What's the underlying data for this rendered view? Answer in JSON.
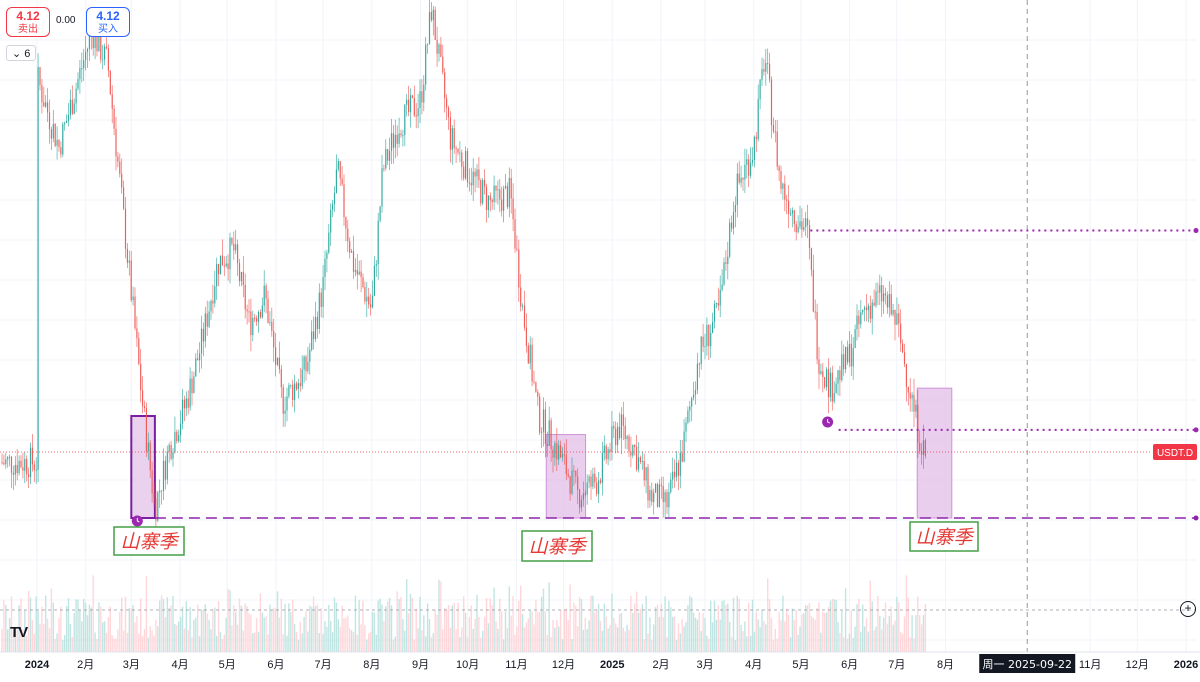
{
  "trade": {
    "sell_price": "4.12",
    "sell_label": "卖出",
    "spread": "0.00",
    "buy_price": "4.12",
    "buy_label": "买入"
  },
  "indicators_collapse": "6",
  "symbol_tag": "USDT.D",
  "crosshair_label": "周一 2025-09-22",
  "annotations": [
    "山寨季",
    "山寨季",
    "山寨季"
  ],
  "colors": {
    "up": "#26a69a",
    "down": "#ef5350",
    "zone_fill": "#e1bee7",
    "zone_border": "#7b1fa2",
    "label_text": "#e53935",
    "label_border": "#43a047",
    "price_tag": "#f23645"
  },
  "icons": [
    "chevron-down-icon",
    "tradingview-logo-icon",
    "alarm-icon",
    "plus-circle-icon"
  ],
  "chart_data": {
    "type": "candlestick",
    "xlabels": [
      "2024",
      "2月",
      "3月",
      "4月",
      "5月",
      "6月",
      "7月",
      "8月",
      "9月",
      "10月",
      "11月",
      "12月",
      "2025",
      "2月",
      "3月",
      "4月",
      "5月",
      "6月",
      "7月",
      "8月",
      "11月",
      "12月",
      "2026"
    ],
    "ylabels": [],
    "title": "",
    "support_line_value": 4.0,
    "current_value": 4.12,
    "dotted_levels": [
      4.62,
      4.19
    ],
    "crosshair_x": "2025-09-22",
    "grid": true,
    "series": [
      {
        "name": "price_path",
        "type": "candlestick",
        "values": [
          [
            "2024-01-01",
            4.95
          ],
          [
            "2024-01-15",
            4.8
          ],
          [
            "2024-01-25",
            4.92
          ],
          [
            "2024-02-05",
            5.05
          ],
          [
            "2024-02-15",
            4.98
          ],
          [
            "2024-02-28",
            4.55
          ],
          [
            "2024-03-08",
            4.25
          ],
          [
            "2024-03-16",
            4.02
          ],
          [
            "2024-03-25",
            4.15
          ],
          [
            "2024-04-05",
            4.25
          ],
          [
            "2024-04-15",
            4.38
          ],
          [
            "2024-04-25",
            4.55
          ],
          [
            "2024-05-05",
            4.58
          ],
          [
            "2024-05-15",
            4.42
          ],
          [
            "2024-05-25",
            4.48
          ],
          [
            "2024-06-05",
            4.25
          ],
          [
            "2024-06-20",
            4.32
          ],
          [
            "2024-07-01",
            4.5
          ],
          [
            "2024-07-10",
            4.75
          ],
          [
            "2024-07-20",
            4.55
          ],
          [
            "2024-08-01",
            4.45
          ],
          [
            "2024-08-08",
            4.75
          ],
          [
            "2024-08-18",
            4.85
          ],
          [
            "2024-09-01",
            4.9
          ],
          [
            "2024-09-08",
            5.1
          ],
          [
            "2024-09-20",
            4.82
          ],
          [
            "2024-10-01",
            4.75
          ],
          [
            "2024-10-15",
            4.68
          ],
          [
            "2024-10-28",
            4.7
          ],
          [
            "2024-11-05",
            4.45
          ],
          [
            "2024-11-15",
            4.22
          ],
          [
            "2024-11-28",
            4.14
          ],
          [
            "2024-12-10",
            4.05
          ],
          [
            "2024-12-22",
            4.08
          ],
          [
            "2025-01-05",
            4.2
          ],
          [
            "2025-01-15",
            4.15
          ],
          [
            "2025-01-25",
            4.05
          ],
          [
            "2025-02-05",
            4.03
          ],
          [
            "2025-02-15",
            4.15
          ],
          [
            "2025-02-25",
            4.35
          ],
          [
            "2025-03-10",
            4.45
          ],
          [
            "2025-03-20",
            4.7
          ],
          [
            "2025-04-01",
            4.8
          ],
          [
            "2025-04-08",
            5.0
          ],
          [
            "2025-04-18",
            4.72
          ],
          [
            "2025-04-28",
            4.65
          ],
          [
            "2025-05-05",
            4.62
          ],
          [
            "2025-05-12",
            4.35
          ],
          [
            "2025-05-20",
            4.28
          ],
          [
            "2025-06-01",
            4.35
          ],
          [
            "2025-06-10",
            4.45
          ],
          [
            "2025-06-22",
            4.48
          ],
          [
            "2025-07-01",
            4.42
          ],
          [
            "2025-07-08",
            4.3
          ],
          [
            "2025-07-14",
            4.2
          ],
          [
            "2025-07-20",
            4.12
          ]
        ]
      }
    ]
  }
}
